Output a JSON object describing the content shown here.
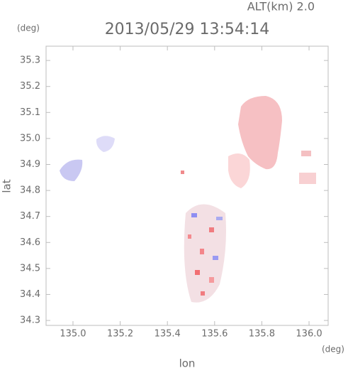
{
  "chart_data": {
    "type": "map",
    "title": "2013/05/29 13:54:14",
    "annotation": "ALT(km) 2.0",
    "y_unit": "(deg)",
    "x_unit": "(deg)",
    "x_label": "lon",
    "y_label": "lat",
    "xlim": [
      134.886,
      136.081
    ],
    "ylim": [
      34.281,
      35.355
    ],
    "xticks": [
      {
        "value": 135,
        "label": "135.0"
      },
      135.2,
      135.4,
      135.6,
      135.8,
      {
        "value": 136,
        "label": "136.0"
      }
    ],
    "yticks": [
      34.3,
      34.4,
      34.5,
      34.6,
      34.7,
      34.8,
      34.9,
      {
        "value": 35,
        "label": "35.0"
      },
      35.1,
      35.2,
      35.3
    ]
  }
}
